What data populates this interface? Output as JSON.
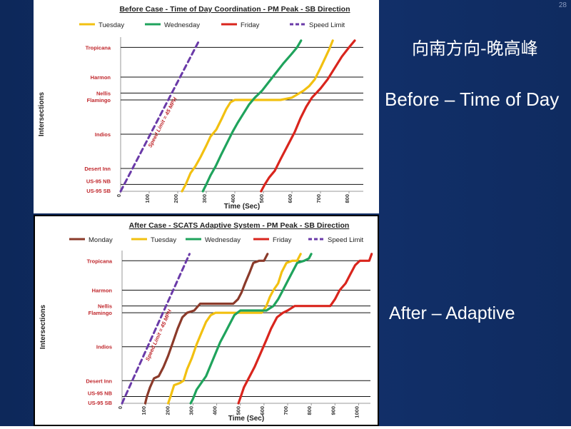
{
  "slide": {
    "page_number": "28",
    "cn_title": "向南方向-晚高峰",
    "before_label": "Before – Time of Day",
    "after_label": "After – Adaptive"
  },
  "chart_data": [
    {
      "type": "line",
      "title": "Before Case - Time of Day Coordination - PM Peak - SB Direction",
      "xlabel": "Time (Sec)",
      "ylabel": "Intersections",
      "xlim": [
        0,
        850
      ],
      "xticks": [
        0,
        100,
        200,
        300,
        400,
        500,
        600,
        700,
        800
      ],
      "intersections": [
        {
          "name": "US-95 SB",
          "pos": 0
        },
        {
          "name": "US-95 NB",
          "pos": 0.3
        },
        {
          "name": "Desert Inn",
          "pos": 1.0
        },
        {
          "name": "Indios",
          "pos": 2.5
        },
        {
          "name": "Flamingo",
          "pos": 4.0
        },
        {
          "name": "Nellis",
          "pos": 4.3
        },
        {
          "name": "Harmon",
          "pos": 5.0
        },
        {
          "name": "Tropicana",
          "pos": 6.3
        }
      ],
      "legend": "top",
      "series": [
        {
          "name": "Tuesday",
          "color": "#f2c010",
          "style": "solid",
          "points": [
            [
              215,
              0
            ],
            [
              228,
              0.3
            ],
            [
              245,
              0.8
            ],
            [
              262,
              1.1
            ],
            [
              280,
              1.5
            ],
            [
              300,
              2.0
            ],
            [
              315,
              2.4
            ],
            [
              335,
              2.7
            ],
            [
              355,
              3.2
            ],
            [
              370,
              3.6
            ],
            [
              385,
              3.9
            ],
            [
              400,
              4.0
            ],
            [
              560,
              4.0
            ],
            [
              600,
              4.1
            ],
            [
              640,
              4.4
            ],
            [
              660,
              4.6
            ],
            [
              680,
              4.9
            ],
            [
              700,
              5.4
            ],
            [
              715,
              5.8
            ],
            [
              730,
              6.2
            ],
            [
              743,
              6.6
            ]
          ]
        },
        {
          "name": "Wednesday",
          "color": "#1fa35c",
          "style": "solid",
          "points": [
            [
              288,
              0
            ],
            [
              300,
              0.3
            ],
            [
              315,
              0.7
            ],
            [
              333,
              1.1
            ],
            [
              352,
              1.6
            ],
            [
              372,
              2.1
            ],
            [
              392,
              2.6
            ],
            [
              410,
              3.0
            ],
            [
              430,
              3.4
            ],
            [
              450,
              3.8
            ],
            [
              470,
              4.1
            ],
            [
              495,
              4.4
            ],
            [
              520,
              4.8
            ],
            [
              545,
              5.2
            ],
            [
              570,
              5.6
            ],
            [
              598,
              6.0
            ],
            [
              618,
              6.3
            ],
            [
              632,
              6.6
            ]
          ]
        },
        {
          "name": "Friday",
          "color": "#d9251d",
          "style": "solid",
          "points": [
            [
              492,
              0
            ],
            [
              505,
              0.3
            ],
            [
              520,
              0.6
            ],
            [
              540,
              0.9
            ],
            [
              560,
              1.4
            ],
            [
              585,
              2.0
            ],
            [
              610,
              2.6
            ],
            [
              630,
              3.2
            ],
            [
              650,
              3.7
            ],
            [
              670,
              4.1
            ],
            [
              700,
              4.5
            ],
            [
              725,
              4.9
            ],
            [
              750,
              5.4
            ],
            [
              775,
              5.9
            ],
            [
              800,
              6.3
            ],
            [
              820,
              6.6
            ]
          ]
        },
        {
          "name": "Speed Limit",
          "color": "#6a3aa8",
          "style": "dashed",
          "points": [
            [
              0,
              0
            ],
            [
              275,
              6.6
            ]
          ]
        }
      ],
      "annotation": "Speed Limit = 45 MPH"
    },
    {
      "type": "line",
      "title": "After Case - SCATS Adaptive System - PM Peak - SB Direction",
      "xlabel": "Time (Sec)",
      "ylabel": "Intersections",
      "xlim": [
        0,
        1050
      ],
      "xticks": [
        0,
        100,
        200,
        300,
        400,
        500,
        600,
        700,
        800,
        900,
        1000
      ],
      "intersections": [
        {
          "name": "US-95 SB",
          "pos": 0
        },
        {
          "name": "US-95 NB",
          "pos": 0.3
        },
        {
          "name": "Desert Inn",
          "pos": 1.0
        },
        {
          "name": "Indios",
          "pos": 2.5
        },
        {
          "name": "Flamingo",
          "pos": 4.0
        },
        {
          "name": "Nellis",
          "pos": 4.3
        },
        {
          "name": "Harmon",
          "pos": 5.0
        },
        {
          "name": "Tropicana",
          "pos": 6.3
        }
      ],
      "legend": "top",
      "series": [
        {
          "name": "Monday",
          "color": "#8b3a2a",
          "style": "solid",
          "points": [
            [
              98,
              0
            ],
            [
              105,
              0.3
            ],
            [
              118,
              0.7
            ],
            [
              135,
              1.1
            ],
            [
              155,
              1.2
            ],
            [
              175,
              1.6
            ],
            [
              195,
              2.1
            ],
            [
              215,
              2.7
            ],
            [
              235,
              3.3
            ],
            [
              255,
              3.8
            ],
            [
              275,
              4.0
            ],
            [
              305,
              4.1
            ],
            [
              330,
              4.4
            ],
            [
              355,
              4.4
            ],
            [
              470,
              4.4
            ],
            [
              490,
              4.6
            ],
            [
              505,
              4.9
            ],
            [
              520,
              5.3
            ],
            [
              540,
              5.8
            ],
            [
              555,
              6.2
            ],
            [
              580,
              6.3
            ],
            [
              600,
              6.3
            ],
            [
              615,
              6.6
            ]
          ]
        },
        {
          "name": "Tuesday",
          "color": "#f2c010",
          "style": "solid",
          "points": [
            [
              195,
              0
            ],
            [
              205,
              0.3
            ],
            [
              220,
              0.8
            ],
            [
              245,
              0.9
            ],
            [
              260,
              1.0
            ],
            [
              275,
              1.5
            ],
            [
              295,
              2.0
            ],
            [
              315,
              2.6
            ],
            [
              335,
              3.1
            ],
            [
              355,
              3.6
            ],
            [
              375,
              3.9
            ],
            [
              395,
              4.0
            ],
            [
              590,
              4.0
            ],
            [
              610,
              4.3
            ],
            [
              625,
              4.7
            ],
            [
              640,
              5.0
            ],
            [
              660,
              5.3
            ],
            [
              675,
              5.8
            ],
            [
              695,
              6.2
            ],
            [
              720,
              6.3
            ],
            [
              740,
              6.3
            ],
            [
              755,
              6.6
            ]
          ]
        },
        {
          "name": "Wednesday",
          "color": "#1fa35c",
          "style": "solid",
          "points": [
            [
              290,
              0
            ],
            [
              300,
              0.2
            ],
            [
              315,
              0.6
            ],
            [
              335,
              0.9
            ],
            [
              355,
              1.2
            ],
            [
              375,
              1.7
            ],
            [
              395,
              2.2
            ],
            [
              415,
              2.7
            ],
            [
              435,
              3.1
            ],
            [
              455,
              3.5
            ],
            [
              475,
              3.9
            ],
            [
              500,
              4.1
            ],
            [
              610,
              4.1
            ],
            [
              640,
              4.3
            ],
            [
              660,
              4.6
            ],
            [
              680,
              5.0
            ],
            [
              700,
              5.4
            ],
            [
              720,
              5.8
            ],
            [
              740,
              6.2
            ],
            [
              770,
              6.3
            ],
            [
              790,
              6.4
            ],
            [
              800,
              6.6
            ]
          ]
        },
        {
          "name": "Friday",
          "color": "#d9251d",
          "style": "solid",
          "points": [
            [
              492,
              0
            ],
            [
              502,
              0.3
            ],
            [
              515,
              0.7
            ],
            [
              535,
              1.1
            ],
            [
              560,
              1.6
            ],
            [
              585,
              2.2
            ],
            [
              610,
              2.8
            ],
            [
              630,
              3.3
            ],
            [
              655,
              3.8
            ],
            [
              680,
              4.0
            ],
            [
              700,
              4.1
            ],
            [
              730,
              4.3
            ],
            [
              760,
              4.3
            ],
            [
              880,
              4.3
            ],
            [
              900,
              4.6
            ],
            [
              920,
              5.0
            ],
            [
              945,
              5.3
            ],
            [
              965,
              5.7
            ],
            [
              985,
              6.1
            ],
            [
              1005,
              6.3
            ],
            [
              1045,
              6.3
            ],
            [
              1055,
              6.6
            ]
          ]
        },
        {
          "name": "Speed Limit",
          "color": "#6a3aa8",
          "style": "dashed",
          "points": [
            [
              0,
              0
            ],
            [
              285,
              6.6
            ]
          ]
        }
      ],
      "annotation": "Speed Limit = 45 MPH"
    }
  ]
}
